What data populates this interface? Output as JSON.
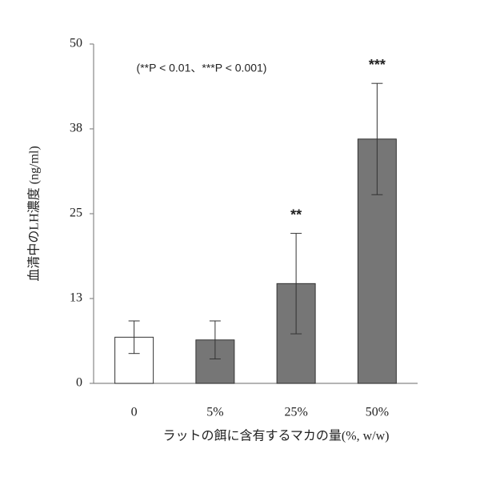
{
  "chart_data": {
    "type": "bar",
    "y_label": "血清中のLH濃度 (ng/ml)",
    "x_label": "ラットの餌に含有するマカの量(%, w/w)",
    "note": "(**P < 0.01、***P < 0.001)",
    "categories": [
      "0",
      "5%",
      "25%",
      "50%"
    ],
    "values": [
      6.8,
      6.4,
      14.7,
      36.0
    ],
    "errors": [
      2.4,
      2.8,
      7.4,
      8.2
    ],
    "significance": [
      null,
      null,
      "**",
      "***"
    ],
    "colors": [
      "#ffffff",
      "#767676",
      "#767676",
      "#767676"
    ],
    "edge_color": "#333333",
    "ylim": [
      0,
      50
    ],
    "yticks": [
      0,
      {
        "value": 12.5,
        "label": "13"
      },
      25,
      {
        "value": 37.5,
        "label": "38"
      },
      50
    ]
  }
}
